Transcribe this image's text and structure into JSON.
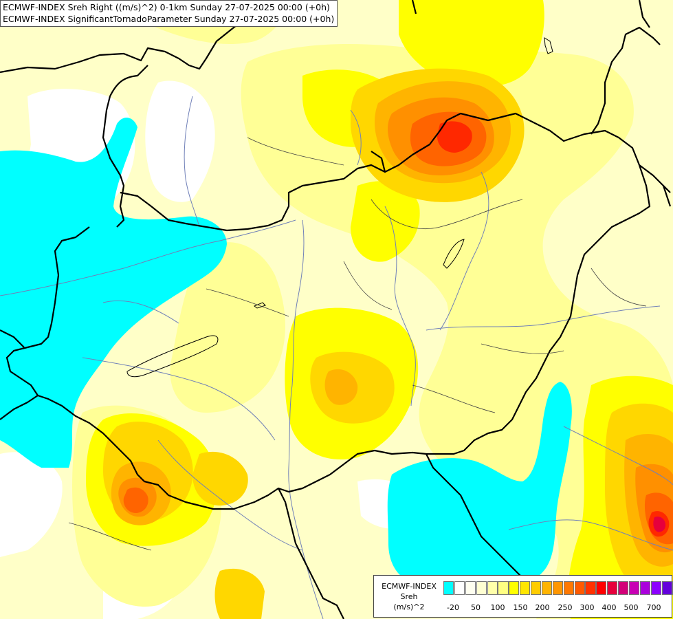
{
  "title": {
    "line1": "ECMWF-INDEX Sreh Right ((m/s)^2) 0-1km Sunday 27-07-2025 00:00 (+0h)",
    "line2": "ECMWF-INDEX SignificantTornadoParameter Sunday 27-07-2025 00:00 (+0h)"
  },
  "legend": {
    "line1": "ECMWF-INDEX",
    "line2": "Sreh",
    "line3": "(m/s)^2",
    "colors": [
      "#00ffff",
      "#ffffff",
      "#fffff0",
      "#ffffd2",
      "#ffffaa",
      "#ffff82",
      "#ffff00",
      "#ffe600",
      "#ffcc00",
      "#ffb400",
      "#ff9600",
      "#ff7800",
      "#ff5a00",
      "#ff3200",
      "#ff0000",
      "#e6003c",
      "#d20078",
      "#c800b4",
      "#aa00dc",
      "#8c00ff",
      "#6400dc",
      "#3c00b4",
      "#140078"
    ],
    "ticks": [
      "-20",
      "50",
      "100",
      "150",
      "200",
      "250",
      "300",
      "400",
      "500",
      "700"
    ]
  },
  "palette": {
    "cyan": "#00ffff",
    "white": "#ffffff",
    "pale": "#ffffc8",
    "light": "#ffff96",
    "yellow": "#ffff00",
    "gold": "#ffd700",
    "orange1": "#ffb400",
    "orange2": "#ff9000",
    "orange3": "#ff6400",
    "red1": "#ff2800",
    "red2": "#e6003c",
    "border": "#000000",
    "river": "#7080b8"
  }
}
